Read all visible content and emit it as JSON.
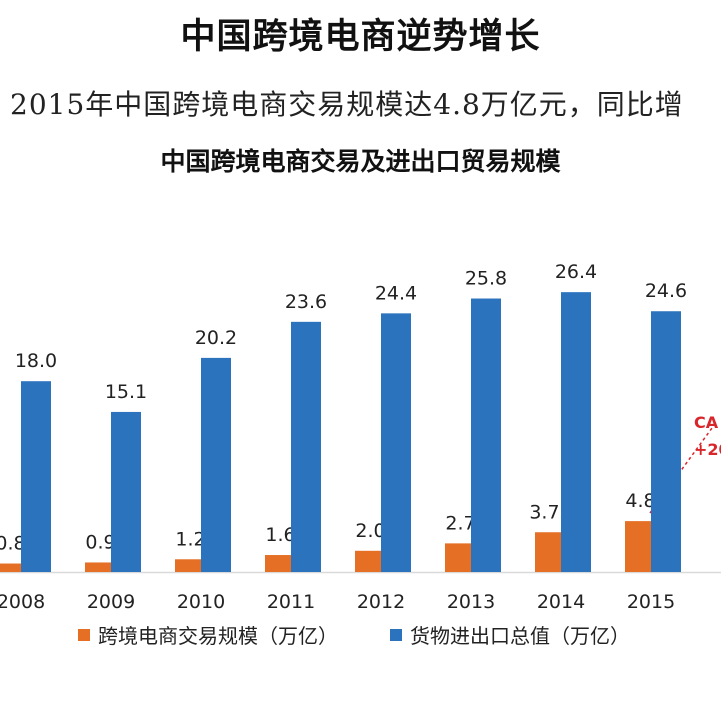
{
  "page": {
    "title": "中国跨境电商逆势增长",
    "subtitle": "2015年中国跨境电商交易规模达4.8万亿元，同比增"
  },
  "chart_data": {
    "type": "bar",
    "title": "中国跨境电商交易及进出口贸易规模",
    "categories": [
      "2008",
      "2009",
      "2010",
      "2011",
      "2012",
      "2013",
      "2014",
      "2015"
    ],
    "series": [
      {
        "name": "跨境电商交易规模（万亿）",
        "color": "#e46f25",
        "values": [
          0.8,
          0.9,
          1.2,
          1.6,
          2.0,
          2.7,
          3.75,
          4.8
        ],
        "labels": [
          "0.8",
          "0.9",
          "1.2",
          "1.6",
          "2.0",
          "2.7",
          "3.75",
          "4.8"
        ]
      },
      {
        "name": "货物进出口总值（万亿）",
        "color": "#2b73bd",
        "values": [
          18.0,
          15.1,
          20.2,
          23.6,
          24.4,
          25.8,
          26.4,
          24.6
        ],
        "labels": [
          "18.0",
          "15.1",
          "20.2",
          "23.6",
          "24.4",
          "25.8",
          "26.4",
          "24.6"
        ]
      }
    ],
    "annotations": {
      "cagr_line1": "CA",
      "cagr_line2": "+20",
      "cagr_color": "#d9262b"
    },
    "ylim": [
      0,
      30
    ],
    "grid": false,
    "legend_position": "bottom"
  }
}
